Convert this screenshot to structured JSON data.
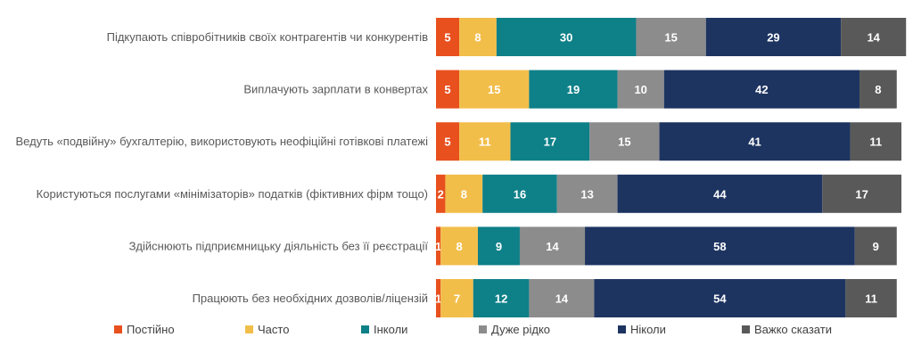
{
  "chart_data": {
    "type": "bar",
    "orientation": "horizontal",
    "stacked": true,
    "title": "",
    "xlabel": "",
    "ylabel": "",
    "xlim": [
      0,
      100
    ],
    "grid": false,
    "legend_position": "bottom",
    "categories": [
      "Підкупають співробітників своїх контрагентів чи конкурентів",
      "Виплачують зарплати в конвертах",
      "Ведуть «подвійну» бухгалтерію, використовують неофіційні готівкові платежі",
      "Користуються послугами «мінімізаторів» податків (фіктивних фірм тощо)",
      "Здійснюють підприємницьку діяльність без її реєстрації",
      "Працюють без необхідних дозволів/ліцензій"
    ],
    "series": [
      {
        "name": "Постійно",
        "color": "#E8501E",
        "label_color": "#FFFFFF",
        "values": [
          5,
          5,
          5,
          2,
          1,
          1
        ]
      },
      {
        "name": "Часто",
        "color": "#F2BE4A",
        "label_color": "#FFFFFF",
        "values": [
          8,
          15,
          11,
          8,
          8,
          7
        ]
      },
      {
        "name": "Інколи",
        "color": "#0E8088",
        "label_color": "#FFFFFF",
        "values": [
          30,
          19,
          17,
          16,
          9,
          12
        ]
      },
      {
        "name": "Дуже рідко",
        "color": "#8C8C8C",
        "label_color": "#FFFFFF",
        "values": [
          15,
          10,
          15,
          13,
          14,
          14
        ]
      },
      {
        "name": "Ніколи",
        "color": "#1D3461",
        "label_color": "#FFFFFF",
        "values": [
          29,
          42,
          41,
          44,
          58,
          54
        ]
      },
      {
        "name": "Важко сказати",
        "color": "#595959",
        "label_color": "#FFFFFF",
        "values": [
          14,
          8,
          11,
          17,
          9,
          11
        ]
      }
    ]
  }
}
